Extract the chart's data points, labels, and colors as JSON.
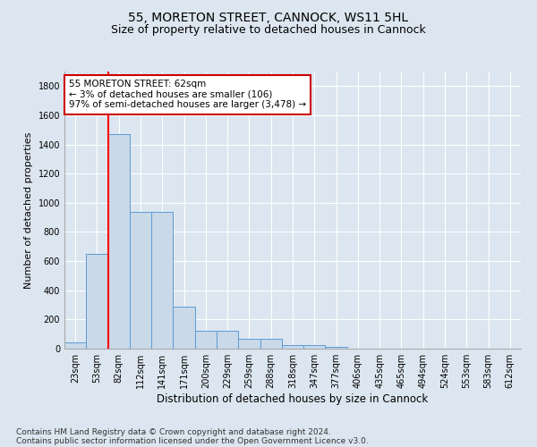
{
  "title1": "55, MORETON STREET, CANNOCK, WS11 5HL",
  "title2": "Size of property relative to detached houses in Cannock",
  "xlabel": "Distribution of detached houses by size in Cannock",
  "ylabel": "Number of detached properties",
  "categories": [
    "23sqm",
    "53sqm",
    "82sqm",
    "112sqm",
    "141sqm",
    "171sqm",
    "200sqm",
    "229sqm",
    "259sqm",
    "288sqm",
    "318sqm",
    "347sqm",
    "377sqm",
    "406sqm",
    "435sqm",
    "465sqm",
    "494sqm",
    "524sqm",
    "553sqm",
    "583sqm",
    "612sqm"
  ],
  "values": [
    40,
    650,
    1470,
    935,
    935,
    290,
    125,
    125,
    65,
    65,
    25,
    25,
    15,
    0,
    0,
    0,
    0,
    0,
    0,
    0,
    0
  ],
  "bar_color": "#c9d9e8",
  "bar_edge_color": "#5b9bd5",
  "red_line_index": 1.5,
  "annotation_text": "55 MORETON STREET: 62sqm\n← 3% of detached houses are smaller (106)\n97% of semi-detached houses are larger (3,478) →",
  "annotation_box_color": "#ffffff",
  "annotation_box_edge": "#cc0000",
  "footnote1": "Contains HM Land Registry data © Crown copyright and database right 2024.",
  "footnote2": "Contains public sector information licensed under the Open Government Licence v3.0.",
  "ylim": [
    0,
    1900
  ],
  "yticks": [
    0,
    200,
    400,
    600,
    800,
    1000,
    1200,
    1400,
    1600,
    1800
  ],
  "background_color": "#dce6f0",
  "plot_bg_color": "#dce6f0",
  "grid_color": "#ffffff",
  "title1_fontsize": 10,
  "title2_fontsize": 9,
  "xlabel_fontsize": 8.5,
  "ylabel_fontsize": 8,
  "tick_fontsize": 7,
  "footnote_fontsize": 6.5,
  "annot_fontsize": 7.5
}
